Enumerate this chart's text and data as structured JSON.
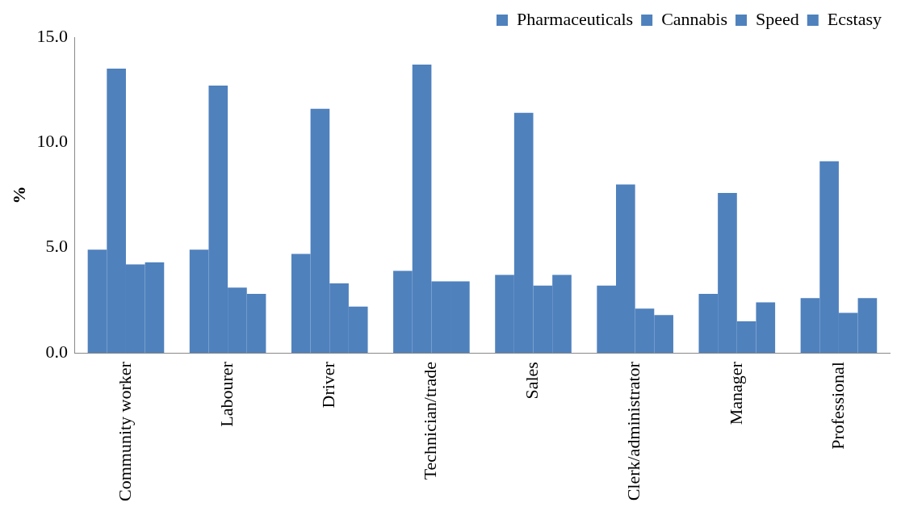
{
  "chart_data": {
    "type": "bar",
    "ylabel": "%",
    "categories": [
      "Community worker",
      "Labourer",
      "Driver",
      "Technician/trade",
      "Sales",
      "Clerk/administrator",
      "Manager",
      "Professional"
    ],
    "series": [
      {
        "name": "Pharmaceuticals",
        "color": "#4f81bd",
        "values": [
          4.9,
          4.9,
          4.7,
          3.9,
          3.7,
          3.2,
          2.8,
          2.6
        ]
      },
      {
        "name": "Cannabis",
        "color": "#4f81bd",
        "values": [
          13.5,
          12.7,
          11.6,
          13.7,
          11.4,
          8.0,
          7.6,
          9.1
        ]
      },
      {
        "name": "Speed",
        "color": "#4f81bd",
        "values": [
          4.2,
          3.1,
          3.3,
          3.4,
          3.2,
          2.1,
          1.5,
          1.9
        ]
      },
      {
        "name": "Ecstasy",
        "color": "#4f81bd",
        "values": [
          4.3,
          2.8,
          2.2,
          3.4,
          3.7,
          1.8,
          2.4,
          2.6
        ]
      }
    ],
    "ylim": [
      0,
      15
    ],
    "yticks": [
      {
        "value": 0,
        "label": "0.0"
      },
      {
        "value": 5,
        "label": "5.0"
      },
      {
        "value": 10,
        "label": "10.0"
      },
      {
        "value": 15,
        "label": "15.0"
      }
    ],
    "grid": false,
    "legend": "top right"
  }
}
